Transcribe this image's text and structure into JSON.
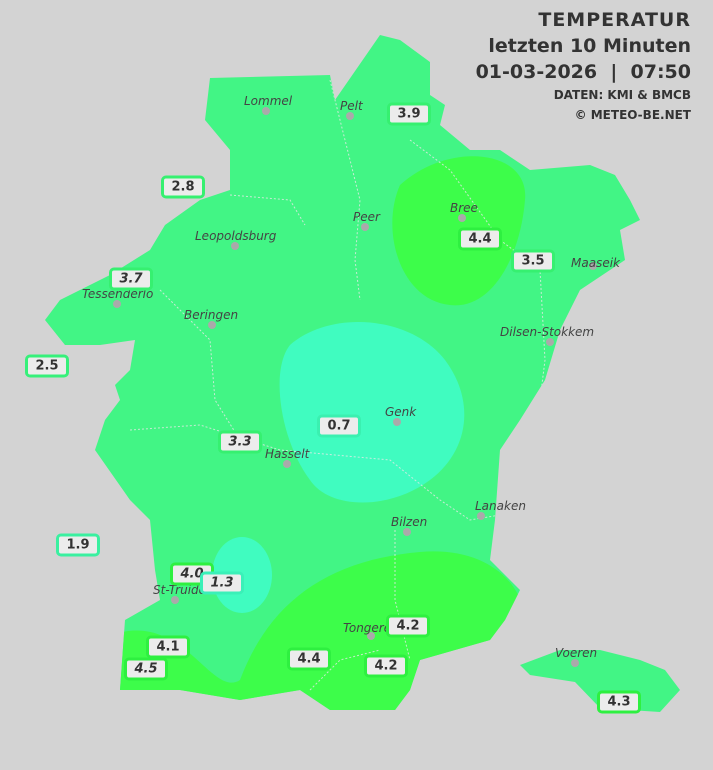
{
  "header": {
    "title": "TEMPERATUR",
    "subtitle": "letzten 10 Minuten",
    "datetime": "01-03-2026  |  07:50",
    "source": "DATEN: KMI & BMCB",
    "copyright": "© METEO-BE.NET"
  },
  "colors": {
    "background": "#d3d3d3",
    "base": "#42f585",
    "warm": "#3dfd4a",
    "cool": "#40fcc0"
  },
  "cities": [
    {
      "name": "Lommel"
    },
    {
      "name": "Pelt"
    },
    {
      "name": "Peer"
    },
    {
      "name": "Bree"
    },
    {
      "name": "Maaseik"
    },
    {
      "name": "Leopoldsburg"
    },
    {
      "name": "Tessenderlo"
    },
    {
      "name": "Beringen"
    },
    {
      "name": "Dilsen-Stokkem"
    },
    {
      "name": "Genk"
    },
    {
      "name": "Hasselt"
    },
    {
      "name": "Lanaken"
    },
    {
      "name": "Bilzen"
    },
    {
      "name": "St-Truiden"
    },
    {
      "name": "Tongeren"
    },
    {
      "name": "Voeren"
    }
  ],
  "readings": [
    {
      "value": "3.9",
      "italic": false,
      "border": "#36f070"
    },
    {
      "value": "2.8",
      "italic": false,
      "border": "#36f070"
    },
    {
      "value": "4.4",
      "italic": false,
      "border": "#2ef040"
    },
    {
      "value": "3.5",
      "italic": false,
      "border": "#36f070"
    },
    {
      "value": "3.7",
      "italic": true,
      "border": "#36f070"
    },
    {
      "value": "2.5",
      "italic": false,
      "border": "#36f07a"
    },
    {
      "value": "0.7",
      "italic": false,
      "border": "#3af0b0"
    },
    {
      "value": "3.3",
      "italic": true,
      "border": "#36f070"
    },
    {
      "value": "1.9",
      "italic": false,
      "border": "#3af0a0"
    },
    {
      "value": "4.0",
      "italic": true,
      "border": "#2ef040"
    },
    {
      "value": "1.3",
      "italic": true,
      "border": "#3af0b8"
    },
    {
      "value": "4.1",
      "italic": false,
      "border": "#2ef040"
    },
    {
      "value": "4.5",
      "italic": true,
      "border": "#2ef040"
    },
    {
      "value": "4.2",
      "italic": false,
      "border": "#2ef040"
    },
    {
      "value": "4.4",
      "italic": false,
      "border": "#2ef040"
    },
    {
      "value": "4.2",
      "italic": false,
      "border": "#2ef040"
    },
    {
      "value": "4.3",
      "italic": false,
      "border": "#2ef040"
    }
  ]
}
